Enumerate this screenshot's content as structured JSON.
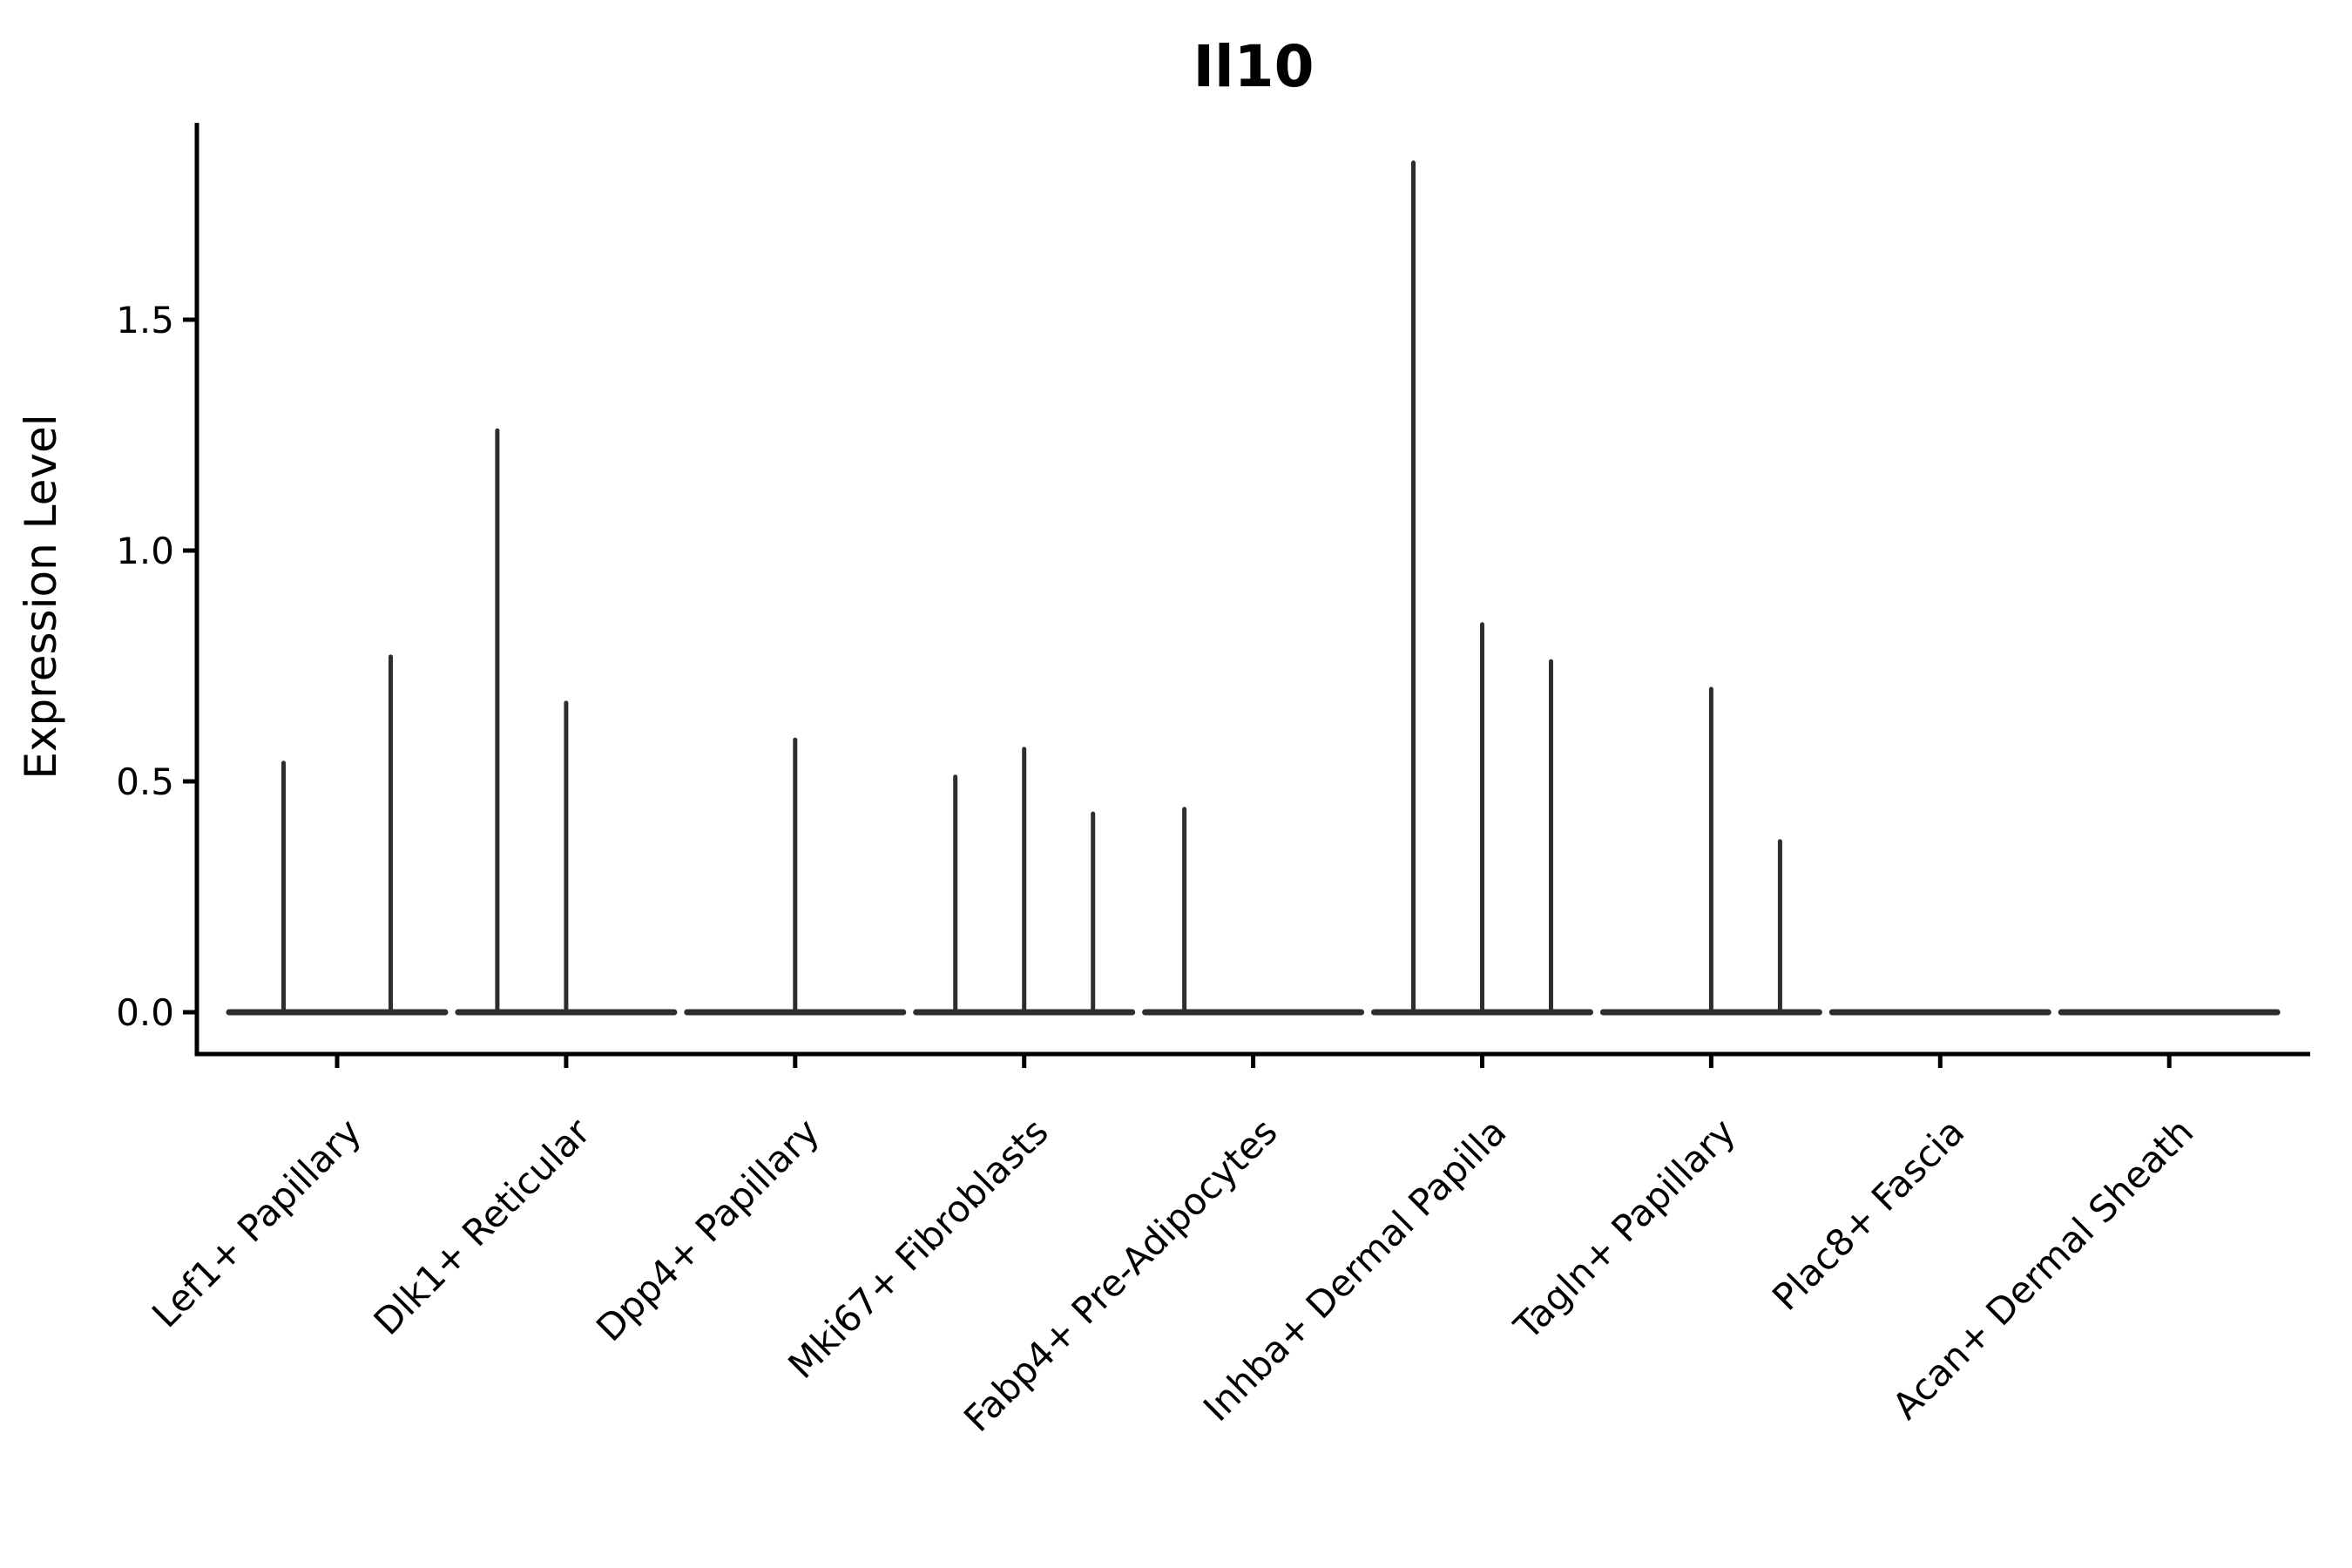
{
  "figure": {
    "background": "#ffffff",
    "axis_color": "#000000",
    "violin_color": "#2e2e2e"
  },
  "chart_data": {
    "type": "violin",
    "title": "Il10",
    "xlabel": "",
    "ylabel": "Expression Level",
    "ylim": [
      0,
      1.93
    ],
    "grid": false,
    "legend": null,
    "yticks": [
      {
        "label": "0.0",
        "value": 0.0
      },
      {
        "label": "0.5",
        "value": 0.5
      },
      {
        "label": "1.0",
        "value": 1.0
      },
      {
        "label": "1.5",
        "value": 1.5
      }
    ],
    "categories": [
      "Lef1+ Papillary",
      "Dlk1+ Reticular",
      "Dpp4+ Papillary",
      "Mki67+ Fibroblasts",
      "Fabp4+ Pre-Adipocytes",
      "Inhba+ Dermal Papilla",
      "Tagln+ Papillary",
      "Plac8+ Fascia",
      "Acan+ Dermal Sheath"
    ],
    "violins": [
      {
        "category": "Lef1+ Papillary",
        "slots": 2,
        "spikes": [
          {
            "slot": "left",
            "peak": 0.54
          },
          {
            "slot": "right",
            "peak": 0.77
          }
        ]
      },
      {
        "category": "Dlk1+ Reticular",
        "slots": 3,
        "spikes": [
          {
            "slot": "left",
            "peak": 1.26
          },
          {
            "slot": "center",
            "peak": 0.67
          }
        ]
      },
      {
        "category": "Dpp4+ Papillary",
        "slots": 3,
        "spikes": [
          {
            "slot": "center",
            "peak": 0.59
          }
        ]
      },
      {
        "category": "Mki67+ Fibroblasts",
        "slots": 3,
        "spikes": [
          {
            "slot": "left",
            "peak": 0.51
          },
          {
            "slot": "center",
            "peak": 0.57
          },
          {
            "slot": "right",
            "peak": 0.43
          }
        ]
      },
      {
        "category": "Fabp4+ Pre-Adipocytes",
        "slots": 3,
        "spikes": [
          {
            "slot": "left",
            "peak": 0.44
          }
        ]
      },
      {
        "category": "Inhba+ Dermal Papilla",
        "slots": 3,
        "spikes": [
          {
            "slot": "left",
            "peak": 1.84
          },
          {
            "slot": "center",
            "peak": 0.84
          },
          {
            "slot": "right",
            "peak": 0.76
          }
        ]
      },
      {
        "category": "Tagln+ Papillary",
        "slots": 3,
        "spikes": [
          {
            "slot": "center",
            "peak": 0.7
          },
          {
            "slot": "right",
            "peak": 0.37
          }
        ]
      },
      {
        "category": "Plac8+ Fascia",
        "slots": 3,
        "spikes": []
      },
      {
        "category": "Acan+ Dermal Sheath",
        "slots": 3,
        "spikes": []
      }
    ]
  }
}
